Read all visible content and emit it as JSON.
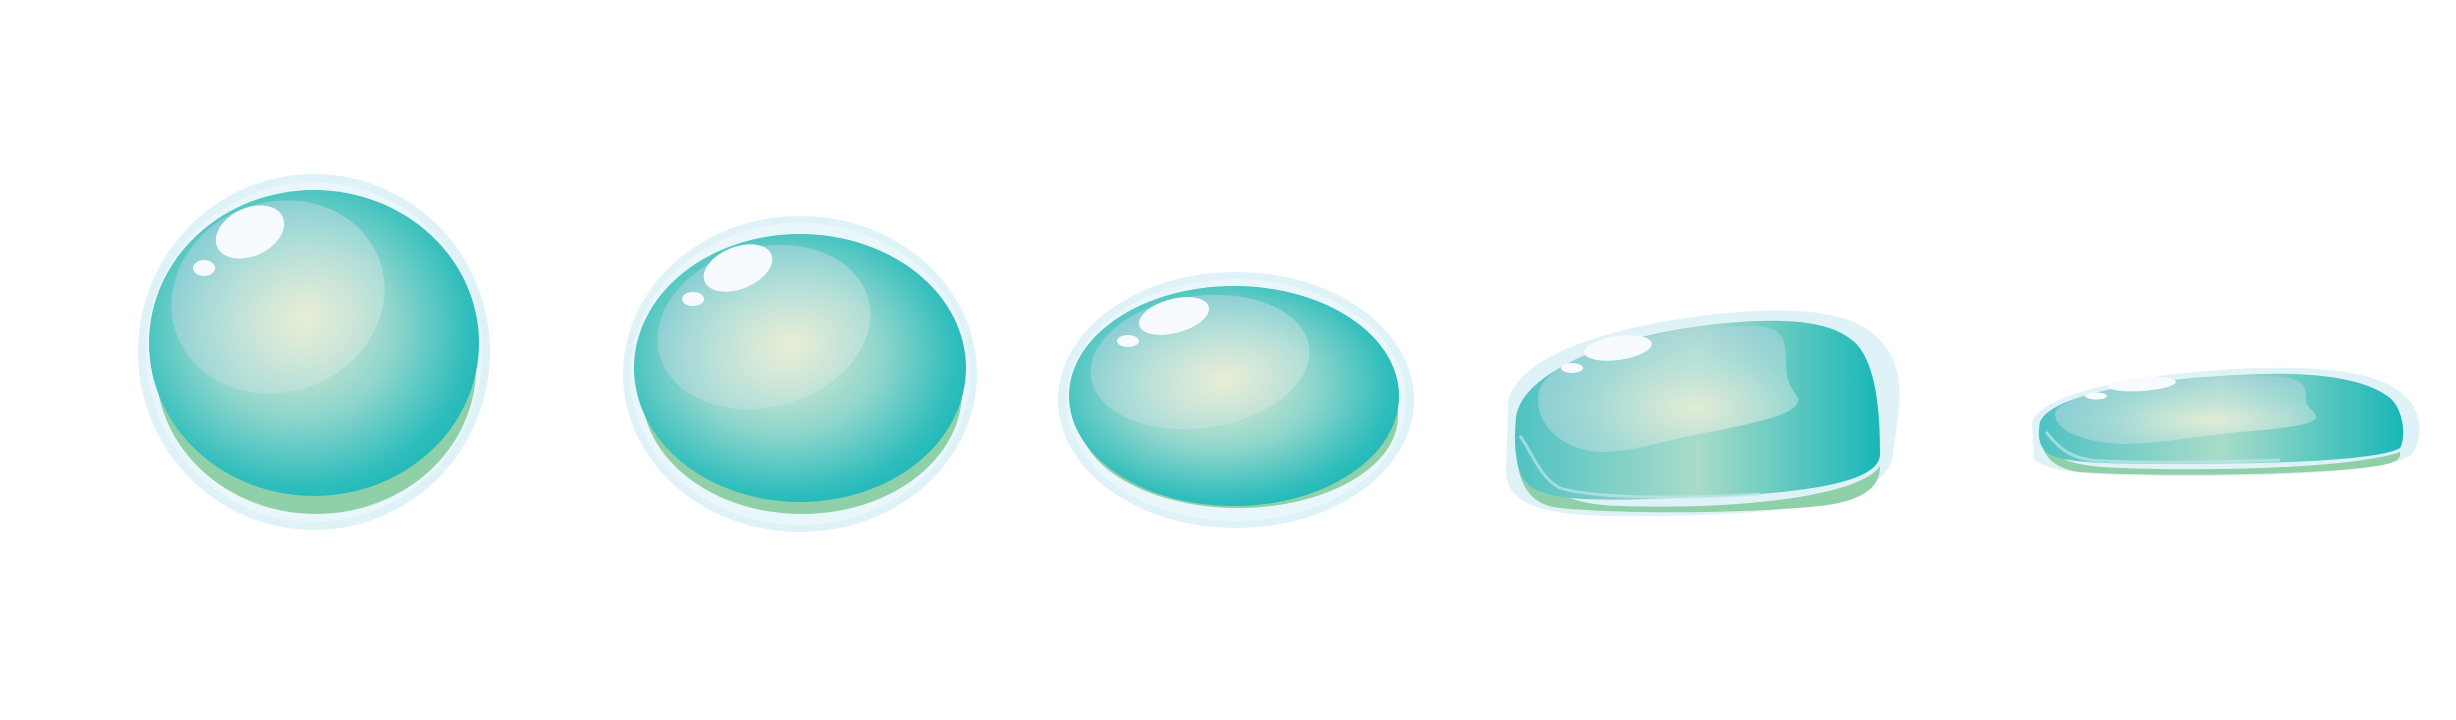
{
  "scene": {
    "background": "#ffffff",
    "subject": "water-droplet-sequence",
    "drop_count": 5
  },
  "palette": {
    "halo": "#dff2f8",
    "halo_edge": "#e9f7fb",
    "body_dark": "#12b4b6",
    "body_mid": "#5ec9c6",
    "body_light": "#e3ecd0",
    "shadow": "#8fd0a8",
    "highlight": "#f7fbff",
    "sheen": "#bfe7ea"
  },
  "drops": [
    {
      "name": "round-drop",
      "shape": "sphere"
    },
    {
      "name": "slightly-squashed-drop",
      "shape": "oval"
    },
    {
      "name": "flattened-drop",
      "shape": "ellipse"
    },
    {
      "name": "spreading-drop",
      "shape": "puddle"
    },
    {
      "name": "flat-puddle-drop",
      "shape": "thin-puddle"
    }
  ]
}
